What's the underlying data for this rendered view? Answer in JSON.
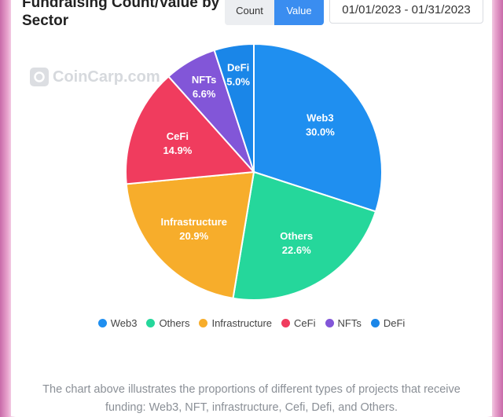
{
  "header": {
    "title": "Fundraising Count/Value by Sector",
    "toggle": {
      "count_label": "Count",
      "value_label": "Value",
      "active": "Value"
    },
    "date_range": "01/01/2023 - 01/31/2023"
  },
  "watermark": {
    "text": "CoinCarp.com"
  },
  "chart_data": {
    "type": "pie",
    "title": "",
    "categories": [
      "Web3",
      "Others",
      "Infrastructure",
      "CeFi",
      "NFTs",
      "DeFi"
    ],
    "values": [
      30.0,
      22.6,
      20.9,
      14.9,
      6.6,
      5.0
    ],
    "labels": [
      "30.0%",
      "22.6%",
      "20.9%",
      "14.9%",
      "6.6%",
      "5.0%"
    ],
    "colors": [
      "#1f8ff0",
      "#25d79b",
      "#f7ad2b",
      "#f03c5e",
      "#8256d8",
      "#1a86e8"
    ],
    "legend_position": "bottom"
  },
  "caption": "The chart above illustrates the proportions of different types of projects that receive funding: Web3, NFT, infrastructure, Cefi, Defi, and Others."
}
